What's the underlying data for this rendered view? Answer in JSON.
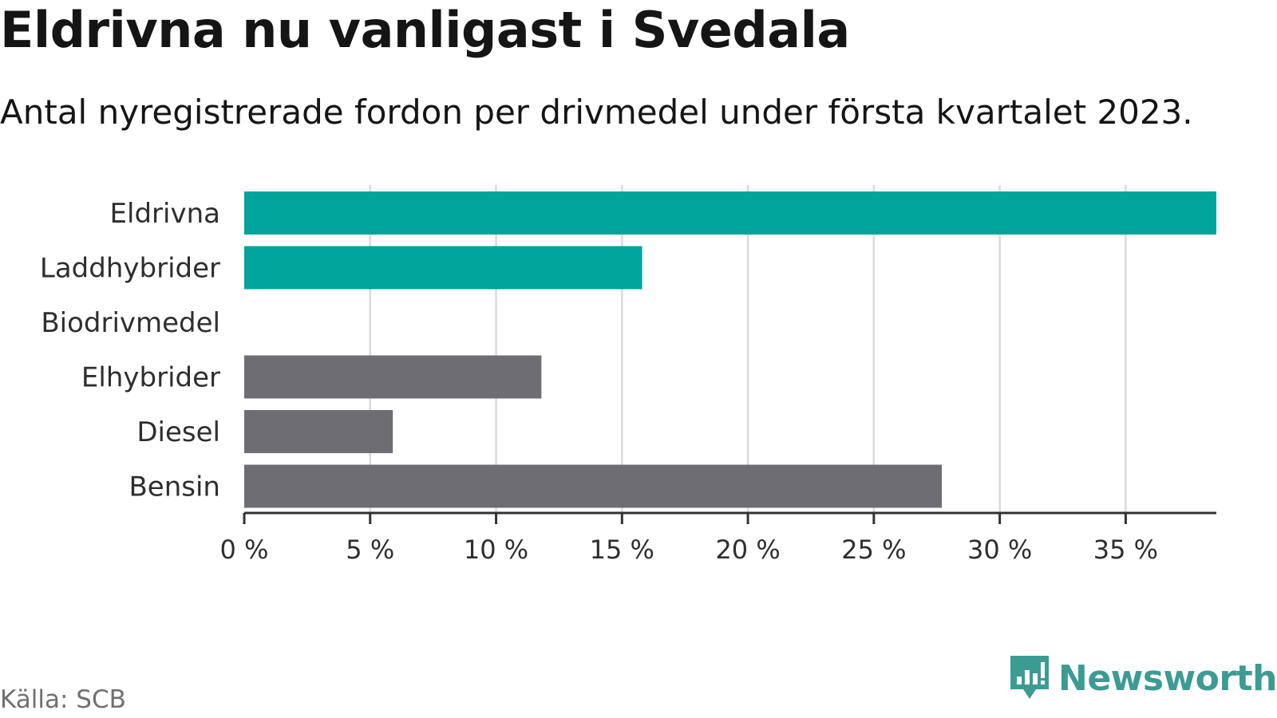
{
  "header": {
    "title": "Eldrivna nu vanligast i Svedala",
    "subtitle": "Antal nyregistrerade fordon per drivmedel under första kvartalet 2023."
  },
  "footer": {
    "source": "Källa: SCB",
    "brand": "Newsworthy",
    "brand_logo_icon": "bar-chart-speech-bubble-icon"
  },
  "chart_data": {
    "type": "bar",
    "orientation": "horizontal",
    "categories": [
      "Eldrivna",
      "Laddhybrider",
      "Biodrivmedel",
      "Elhybrider",
      "Diesel",
      "Bensin"
    ],
    "values": [
      38.6,
      15.8,
      0,
      11.8,
      5.9,
      27.7
    ],
    "colors": [
      "#00a49b",
      "#00a49b",
      "#00a49b",
      "#6e6d73",
      "#6e6d73",
      "#6e6d73"
    ],
    "xlim": [
      0,
      38.6
    ],
    "xticks": [
      0,
      5,
      10,
      15,
      20,
      25,
      30,
      35
    ],
    "xtick_labels": [
      "0 %",
      "5 %",
      "10 %",
      "15 %",
      "20 %",
      "25 %",
      "30 %",
      "35 %"
    ],
    "grid": true,
    "gridline_color": "#dadada",
    "axis_color": "#333333"
  }
}
